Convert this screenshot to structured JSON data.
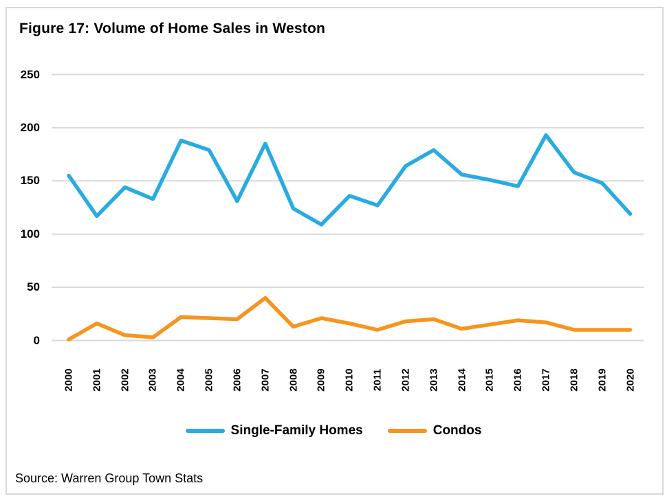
{
  "figure": {
    "title": "Figure 17: Volume of Home Sales in Weston",
    "source": "Source: Warren Group Town Stats"
  },
  "colors": {
    "single_family": "#29ABE2",
    "condos": "#F7941E",
    "gridline": "#D9D9D9",
    "border": "#D8D8D8",
    "text": "#000000"
  },
  "chart_data": {
    "type": "line",
    "title": "Figure 17: Volume of Home Sales in Weston",
    "xlabel": "",
    "ylabel": "",
    "ylim": [
      0,
      250
    ],
    "yticks": [
      0,
      50,
      100,
      150,
      200,
      250
    ],
    "grid": "horizontal",
    "legend_position": "bottom",
    "categories": [
      "2000",
      "2001",
      "2002",
      "2003",
      "2004",
      "2005",
      "2006",
      "2007",
      "2008",
      "2009",
      "2010",
      "2011",
      "2012",
      "2013",
      "2014",
      "2015",
      "2016",
      "2017",
      "2018",
      "2019",
      "2020"
    ],
    "series": [
      {
        "name": "Single-Family Homes",
        "color_key": "single_family",
        "values": [
          155,
          117,
          144,
          133,
          188,
          179,
          131,
          185,
          124,
          109,
          136,
          127,
          164,
          179,
          156,
          151,
          145,
          193,
          158,
          148,
          119
        ]
      },
      {
        "name": "Condos",
        "color_key": "condos",
        "values": [
          1,
          16,
          5,
          3,
          22,
          21,
          20,
          40,
          13,
          21,
          16,
          10,
          18,
          20,
          11,
          15,
          19,
          17,
          10,
          10,
          10
        ]
      }
    ]
  }
}
